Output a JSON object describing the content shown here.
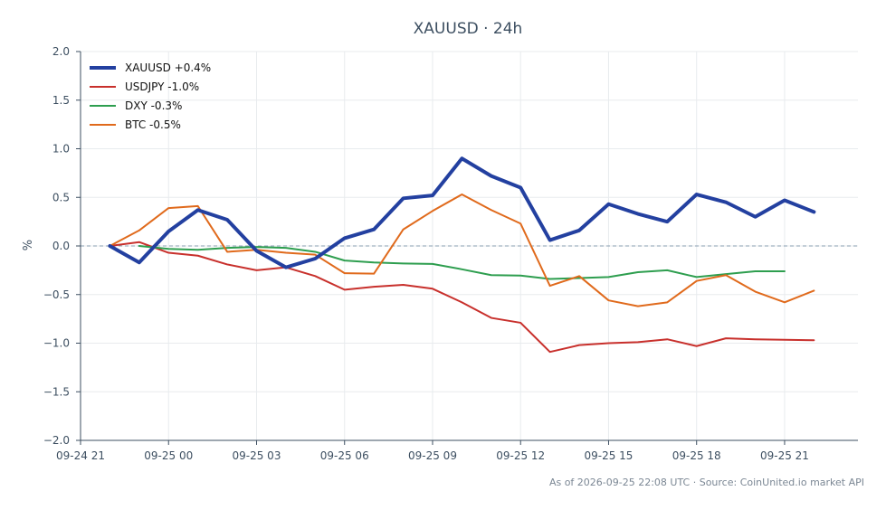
{
  "chart_data": {
    "type": "line",
    "title": "XAUUSD · 24h",
    "xlabel": "",
    "ylabel": "%",
    "ylim": [
      -2.0,
      2.0
    ],
    "yticks": [
      2.0,
      1.5,
      1.0,
      0.5,
      0.0,
      -0.5,
      -1.0,
      -1.5,
      -2.0
    ],
    "ytick_labels": [
      "2.0",
      "1.5",
      "1.0",
      "0.5",
      "0.0",
      "−0.5",
      "−1.0",
      "−1.5",
      "−2.0"
    ],
    "xlim": [
      0,
      26.5
    ],
    "xticks": [
      0,
      3,
      6,
      9,
      12,
      15,
      18,
      21,
      24
    ],
    "xtick_labels": [
      "09-24 21",
      "09-25 00",
      "09-25 03",
      "09-25 06",
      "09-25 09",
      "09-25 12",
      "09-25 15",
      "09-25 18",
      "09-25 21"
    ],
    "x_unit": "hours from 09-24 21:00 UTC",
    "grid": true,
    "zero_line": true,
    "legend_position": "top-left",
    "series": [
      {
        "name": "XAUUSD +0.4%",
        "color": "#2340a0",
        "width": 4,
        "x": [
          1,
          2,
          3,
          4,
          5,
          6,
          7,
          8,
          9,
          10,
          11,
          12,
          13,
          14,
          15,
          16,
          17,
          18,
          19,
          20,
          21,
          22,
          23,
          24,
          25
        ],
        "values": [
          0.0,
          -0.17,
          0.15,
          0.37,
          0.27,
          -0.05,
          -0.22,
          -0.13,
          0.08,
          0.17,
          0.49,
          0.52,
          0.9,
          0.72,
          0.6,
          0.06,
          0.16,
          0.43,
          0.33,
          0.25,
          0.53,
          0.45,
          0.3,
          0.47,
          0.35
        ]
      },
      {
        "name": "USDJPY -1.0%",
        "color": "#c8302c",
        "width": 2,
        "x": [
          1,
          2,
          3,
          4,
          5,
          6,
          7,
          8,
          9,
          10,
          11,
          12,
          13,
          14,
          15,
          16,
          17,
          18,
          19,
          20,
          21,
          22,
          23,
          24,
          25
        ],
        "values": [
          0.0,
          0.04,
          -0.07,
          -0.1,
          -0.19,
          -0.25,
          -0.22,
          -0.31,
          -0.45,
          -0.42,
          -0.4,
          -0.44,
          -0.58,
          -0.74,
          -0.79,
          -1.09,
          -1.02,
          -1.0,
          -0.99,
          -0.96,
          -1.03,
          -0.95,
          -0.96,
          -0.965,
          -0.97
        ]
      },
      {
        "name": "DXY -0.3%",
        "color": "#2e9e4f",
        "width": 2,
        "x": [
          2,
          3,
          4,
          5,
          6,
          7,
          8,
          9,
          10,
          11,
          12,
          13,
          14,
          15,
          16,
          17,
          18,
          19,
          20,
          21,
          22,
          23,
          24
        ],
        "values": [
          0.0,
          -0.03,
          -0.04,
          -0.02,
          -0.01,
          -0.02,
          -0.06,
          -0.15,
          -0.17,
          -0.18,
          -0.185,
          -0.24,
          -0.3,
          -0.305,
          -0.34,
          -0.33,
          -0.32,
          -0.27,
          -0.25,
          -0.32,
          -0.29,
          -0.26,
          -0.26
        ]
      },
      {
        "name": "BTC -0.5%",
        "color": "#e06a1c",
        "width": 2,
        "x": [
          1,
          2,
          3,
          4,
          5,
          6,
          7,
          8,
          9,
          10,
          11,
          12,
          13,
          14,
          15,
          16,
          17,
          18,
          19,
          20,
          21,
          22,
          23,
          24,
          25
        ],
        "values": [
          0.0,
          0.16,
          0.39,
          0.41,
          -0.06,
          -0.04,
          -0.07,
          -0.09,
          -0.28,
          -0.285,
          0.17,
          0.36,
          0.53,
          0.37,
          0.23,
          -0.41,
          -0.31,
          -0.56,
          -0.62,
          -0.58,
          -0.36,
          -0.3,
          -0.47,
          -0.58,
          -0.46
        ]
      }
    ]
  },
  "footer": "As of 2026-09-25 22:08 UTC · Source: CoinUnited.io market API"
}
